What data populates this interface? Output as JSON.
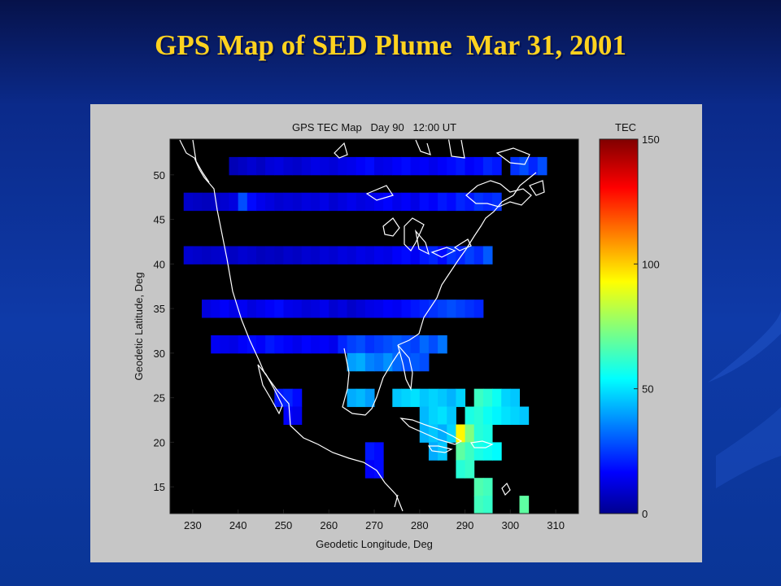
{
  "slide": {
    "title": "GPS Map of SED Plume  Mar 31, 2001",
    "title_color": "#ffd21f",
    "background_color": "#0e3aa8"
  },
  "chart_data": {
    "type": "heatmap",
    "title": "GPS TEC Map   Day 90   12:00 UT",
    "xlabel": "Geodetic Longitude, Deg",
    "ylabel": "Geodetic Latitude, Deg",
    "xlim": [
      225,
      315
    ],
    "ylim": [
      12,
      54
    ],
    "xticks": [
      230,
      240,
      250,
      260,
      270,
      280,
      290,
      300,
      310
    ],
    "yticks": [
      15,
      20,
      25,
      30,
      35,
      40,
      45,
      50
    ],
    "no_data_color": "#000000",
    "coastlines": "white outline of North America",
    "colorbar": {
      "label": "TEC",
      "min": 0,
      "max": 150,
      "ticks": [
        0,
        50,
        100,
        150
      ],
      "colormap": "jet",
      "placement": "right"
    },
    "cell_size_deg": 2,
    "cells": [
      {
        "lon": 239,
        "lat": 51,
        "tec": 8
      },
      {
        "lon": 241,
        "lat": 51,
        "tec": 10
      },
      {
        "lon": 243,
        "lat": 51,
        "tec": 12
      },
      {
        "lon": 245,
        "lat": 51,
        "tec": 10
      },
      {
        "lon": 247,
        "lat": 51,
        "tec": 13
      },
      {
        "lon": 249,
        "lat": 51,
        "tec": 14
      },
      {
        "lon": 251,
        "lat": 51,
        "tec": 12
      },
      {
        "lon": 253,
        "lat": 51,
        "tec": 11
      },
      {
        "lon": 255,
        "lat": 51,
        "tec": 13
      },
      {
        "lon": 257,
        "lat": 51,
        "tec": 15
      },
      {
        "lon": 259,
        "lat": 51,
        "tec": 14
      },
      {
        "lon": 261,
        "lat": 51,
        "tec": 13
      },
      {
        "lon": 263,
        "lat": 51,
        "tec": 15
      },
      {
        "lon": 265,
        "lat": 51,
        "tec": 16
      },
      {
        "lon": 267,
        "lat": 51,
        "tec": 18
      },
      {
        "lon": 269,
        "lat": 51,
        "tec": 20
      },
      {
        "lon": 271,
        "lat": 51,
        "tec": 15
      },
      {
        "lon": 273,
        "lat": 51,
        "tec": 16
      },
      {
        "lon": 275,
        "lat": 51,
        "tec": 18
      },
      {
        "lon": 277,
        "lat": 51,
        "tec": 20
      },
      {
        "lon": 279,
        "lat": 51,
        "tec": 17
      },
      {
        "lon": 281,
        "lat": 51,
        "tec": 18
      },
      {
        "lon": 283,
        "lat": 51,
        "tec": 16
      },
      {
        "lon": 285,
        "lat": 51,
        "tec": 18
      },
      {
        "lon": 287,
        "lat": 51,
        "tec": 20
      },
      {
        "lon": 289,
        "lat": 51,
        "tec": 22
      },
      {
        "lon": 291,
        "lat": 51,
        "tec": 18
      },
      {
        "lon": 293,
        "lat": 51,
        "tec": 20
      },
      {
        "lon": 295,
        "lat": 51,
        "tec": 24
      },
      {
        "lon": 297,
        "lat": 51,
        "tec": 22
      },
      {
        "lon": 301,
        "lat": 51,
        "tec": 26
      },
      {
        "lon": 303,
        "lat": 51,
        "tec": 30
      },
      {
        "lon": 305,
        "lat": 51,
        "tec": 24
      },
      {
        "lon": 307,
        "lat": 51,
        "tec": 30
      },
      {
        "lon": 229,
        "lat": 47,
        "tec": 11
      },
      {
        "lon": 231,
        "lat": 47,
        "tec": 10
      },
      {
        "lon": 233,
        "lat": 47,
        "tec": 9
      },
      {
        "lon": 235,
        "lat": 47,
        "tec": 10
      },
      {
        "lon": 237,
        "lat": 47,
        "tec": 12
      },
      {
        "lon": 239,
        "lat": 47,
        "tec": 14
      },
      {
        "lon": 241,
        "lat": 47,
        "tec": 30
      },
      {
        "lon": 243,
        "lat": 47,
        "tec": 20
      },
      {
        "lon": 245,
        "lat": 47,
        "tec": 16
      },
      {
        "lon": 247,
        "lat": 47,
        "tec": 14
      },
      {
        "lon": 249,
        "lat": 47,
        "tec": 12
      },
      {
        "lon": 251,
        "lat": 47,
        "tec": 13
      },
      {
        "lon": 253,
        "lat": 47,
        "tec": 12
      },
      {
        "lon": 255,
        "lat": 47,
        "tec": 14
      },
      {
        "lon": 257,
        "lat": 47,
        "tec": 13
      },
      {
        "lon": 259,
        "lat": 47,
        "tec": 15
      },
      {
        "lon": 261,
        "lat": 47,
        "tec": 12
      },
      {
        "lon": 263,
        "lat": 47,
        "tec": 14
      },
      {
        "lon": 265,
        "lat": 47,
        "tec": 16
      },
      {
        "lon": 267,
        "lat": 47,
        "tec": 14
      },
      {
        "lon": 269,
        "lat": 47,
        "tec": 15
      },
      {
        "lon": 271,
        "lat": 47,
        "tec": 17
      },
      {
        "lon": 273,
        "lat": 47,
        "tec": 19
      },
      {
        "lon": 275,
        "lat": 47,
        "tec": 16
      },
      {
        "lon": 277,
        "lat": 47,
        "tec": 18
      },
      {
        "lon": 279,
        "lat": 47,
        "tec": 15
      },
      {
        "lon": 281,
        "lat": 47,
        "tec": 20
      },
      {
        "lon": 283,
        "lat": 47,
        "tec": 18
      },
      {
        "lon": 285,
        "lat": 47,
        "tec": 22
      },
      {
        "lon": 287,
        "lat": 47,
        "tec": 20
      },
      {
        "lon": 289,
        "lat": 47,
        "tec": 24
      },
      {
        "lon": 291,
        "lat": 47,
        "tec": 22
      },
      {
        "lon": 293,
        "lat": 47,
        "tec": 26
      },
      {
        "lon": 295,
        "lat": 47,
        "tec": 24
      },
      {
        "lon": 297,
        "lat": 47,
        "tec": 26
      },
      {
        "lon": 229,
        "lat": 41,
        "tec": 12
      },
      {
        "lon": 231,
        "lat": 41,
        "tec": 11
      },
      {
        "lon": 233,
        "lat": 41,
        "tec": 10
      },
      {
        "lon": 235,
        "lat": 41,
        "tec": 11
      },
      {
        "lon": 237,
        "lat": 41,
        "tec": 12
      },
      {
        "lon": 239,
        "lat": 41,
        "tec": 10
      },
      {
        "lon": 241,
        "lat": 41,
        "tec": 12
      },
      {
        "lon": 243,
        "lat": 41,
        "tec": 11
      },
      {
        "lon": 245,
        "lat": 41,
        "tec": 9
      },
      {
        "lon": 247,
        "lat": 41,
        "tec": 10
      },
      {
        "lon": 249,
        "lat": 41,
        "tec": 9
      },
      {
        "lon": 251,
        "lat": 41,
        "tec": 11
      },
      {
        "lon": 253,
        "lat": 41,
        "tec": 10
      },
      {
        "lon": 255,
        "lat": 41,
        "tec": 12
      },
      {
        "lon": 257,
        "lat": 41,
        "tec": 11
      },
      {
        "lon": 259,
        "lat": 41,
        "tec": 13
      },
      {
        "lon": 261,
        "lat": 41,
        "tec": 12
      },
      {
        "lon": 263,
        "lat": 41,
        "tec": 14
      },
      {
        "lon": 265,
        "lat": 41,
        "tec": 13
      },
      {
        "lon": 267,
        "lat": 41,
        "tec": 15
      },
      {
        "lon": 269,
        "lat": 41,
        "tec": 14
      },
      {
        "lon": 271,
        "lat": 41,
        "tec": 16
      },
      {
        "lon": 273,
        "lat": 41,
        "tec": 15
      },
      {
        "lon": 275,
        "lat": 41,
        "tec": 18
      },
      {
        "lon": 277,
        "lat": 41,
        "tec": 20
      },
      {
        "lon": 279,
        "lat": 41,
        "tec": 17
      },
      {
        "lon": 281,
        "lat": 41,
        "tec": 22
      },
      {
        "lon": 283,
        "lat": 41,
        "tec": 24
      },
      {
        "lon": 285,
        "lat": 41,
        "tec": 20
      },
      {
        "lon": 287,
        "lat": 41,
        "tec": 26
      },
      {
        "lon": 289,
        "lat": 41,
        "tec": 24
      },
      {
        "lon": 291,
        "lat": 41,
        "tec": 28
      },
      {
        "lon": 293,
        "lat": 41,
        "tec": 25
      },
      {
        "lon": 295,
        "lat": 41,
        "tec": 32
      },
      {
        "lon": 233,
        "lat": 35,
        "tec": 14
      },
      {
        "lon": 235,
        "lat": 35,
        "tec": 16
      },
      {
        "lon": 237,
        "lat": 35,
        "tec": 18
      },
      {
        "lon": 239,
        "lat": 35,
        "tec": 15
      },
      {
        "lon": 241,
        "lat": 35,
        "tec": 17
      },
      {
        "lon": 243,
        "lat": 35,
        "tec": 14
      },
      {
        "lon": 245,
        "lat": 35,
        "tec": 16
      },
      {
        "lon": 247,
        "lat": 35,
        "tec": 18
      },
      {
        "lon": 249,
        "lat": 35,
        "tec": 20
      },
      {
        "lon": 251,
        "lat": 35,
        "tec": 16
      },
      {
        "lon": 253,
        "lat": 35,
        "tec": 15
      },
      {
        "lon": 255,
        "lat": 35,
        "tec": 13
      },
      {
        "lon": 257,
        "lat": 35,
        "tec": 14
      },
      {
        "lon": 259,
        "lat": 35,
        "tec": 16
      },
      {
        "lon": 261,
        "lat": 35,
        "tec": 12
      },
      {
        "lon": 263,
        "lat": 35,
        "tec": 14
      },
      {
        "lon": 265,
        "lat": 35,
        "tec": 11
      },
      {
        "lon": 267,
        "lat": 35,
        "tec": 13
      },
      {
        "lon": 269,
        "lat": 35,
        "tec": 15
      },
      {
        "lon": 271,
        "lat": 35,
        "tec": 16
      },
      {
        "lon": 273,
        "lat": 35,
        "tec": 18
      },
      {
        "lon": 275,
        "lat": 35,
        "tec": 17
      },
      {
        "lon": 277,
        "lat": 35,
        "tec": 20
      },
      {
        "lon": 279,
        "lat": 35,
        "tec": 22
      },
      {
        "lon": 281,
        "lat": 35,
        "tec": 24
      },
      {
        "lon": 283,
        "lat": 35,
        "tec": 26
      },
      {
        "lon": 285,
        "lat": 35,
        "tec": 28
      },
      {
        "lon": 287,
        "lat": 35,
        "tec": 30
      },
      {
        "lon": 289,
        "lat": 35,
        "tec": 28
      },
      {
        "lon": 291,
        "lat": 35,
        "tec": 26
      },
      {
        "lon": 293,
        "lat": 35,
        "tec": 24
      },
      {
        "lon": 235,
        "lat": 31,
        "tec": 17
      },
      {
        "lon": 237,
        "lat": 31,
        "tec": 16
      },
      {
        "lon": 239,
        "lat": 31,
        "tec": 15
      },
      {
        "lon": 241,
        "lat": 31,
        "tec": 18
      },
      {
        "lon": 243,
        "lat": 31,
        "tec": 20
      },
      {
        "lon": 245,
        "lat": 31,
        "tec": 18
      },
      {
        "lon": 247,
        "lat": 31,
        "tec": 22
      },
      {
        "lon": 249,
        "lat": 31,
        "tec": 20
      },
      {
        "lon": 251,
        "lat": 31,
        "tec": 18
      },
      {
        "lon": 253,
        "lat": 31,
        "tec": 16
      },
      {
        "lon": 255,
        "lat": 31,
        "tec": 19
      },
      {
        "lon": 257,
        "lat": 31,
        "tec": 17
      },
      {
        "lon": 259,
        "lat": 31,
        "tec": 18
      },
      {
        "lon": 261,
        "lat": 31,
        "tec": 16
      },
      {
        "lon": 263,
        "lat": 31,
        "tec": 24
      },
      {
        "lon": 265,
        "lat": 31,
        "tec": 28
      },
      {
        "lon": 267,
        "lat": 31,
        "tec": 30
      },
      {
        "lon": 269,
        "lat": 31,
        "tec": 26
      },
      {
        "lon": 271,
        "lat": 31,
        "tec": 28
      },
      {
        "lon": 273,
        "lat": 31,
        "tec": 30
      },
      {
        "lon": 275,
        "lat": 31,
        "tec": 32
      },
      {
        "lon": 277,
        "lat": 31,
        "tec": 30
      },
      {
        "lon": 279,
        "lat": 31,
        "tec": 28
      },
      {
        "lon": 281,
        "lat": 31,
        "tec": 34
      },
      {
        "lon": 283,
        "lat": 31,
        "tec": 30
      },
      {
        "lon": 285,
        "lat": 31,
        "tec": 36
      },
      {
        "lon": 265,
        "lat": 29,
        "tec": 42
      },
      {
        "lon": 267,
        "lat": 29,
        "tec": 44
      },
      {
        "lon": 269,
        "lat": 29,
        "tec": 38
      },
      {
        "lon": 271,
        "lat": 29,
        "tec": 36
      },
      {
        "lon": 273,
        "lat": 29,
        "tec": 40
      },
      {
        "lon": 275,
        "lat": 29,
        "tec": 34
      },
      {
        "lon": 277,
        "lat": 29,
        "tec": 30
      },
      {
        "lon": 279,
        "lat": 29,
        "tec": 32
      },
      {
        "lon": 281,
        "lat": 29,
        "tec": 30
      },
      {
        "lon": 265,
        "lat": 25,
        "tec": 44
      },
      {
        "lon": 267,
        "lat": 25,
        "tec": 46
      },
      {
        "lon": 269,
        "lat": 25,
        "tec": 42
      },
      {
        "lon": 275,
        "lat": 25,
        "tec": 48
      },
      {
        "lon": 277,
        "lat": 25,
        "tec": 50
      },
      {
        "lon": 279,
        "lat": 25,
        "tec": 52
      },
      {
        "lon": 281,
        "lat": 25,
        "tec": 48
      },
      {
        "lon": 283,
        "lat": 25,
        "tec": 50
      },
      {
        "lon": 285,
        "lat": 25,
        "tec": 48
      },
      {
        "lon": 287,
        "lat": 25,
        "tec": 45
      },
      {
        "lon": 289,
        "lat": 25,
        "tec": 50
      },
      {
        "lon": 293,
        "lat": 25,
        "tec": 65
      },
      {
        "lon": 295,
        "lat": 25,
        "tec": 62
      },
      {
        "lon": 297,
        "lat": 25,
        "tec": 58
      },
      {
        "lon": 299,
        "lat": 25,
        "tec": 50
      },
      {
        "lon": 301,
        "lat": 25,
        "tec": 48
      },
      {
        "lon": 249,
        "lat": 25,
        "tec": 22
      },
      {
        "lon": 251,
        "lat": 25,
        "tec": 24
      },
      {
        "lon": 253,
        "lat": 25,
        "tec": 20
      },
      {
        "lon": 251,
        "lat": 23,
        "tec": 18
      },
      {
        "lon": 253,
        "lat": 23,
        "tec": 16
      },
      {
        "lon": 281,
        "lat": 23,
        "tec": 46
      },
      {
        "lon": 283,
        "lat": 23,
        "tec": 50
      },
      {
        "lon": 285,
        "lat": 23,
        "tec": 52
      },
      {
        "lon": 287,
        "lat": 23,
        "tec": 48
      },
      {
        "lon": 291,
        "lat": 23,
        "tec": 60
      },
      {
        "lon": 293,
        "lat": 23,
        "tec": 62
      },
      {
        "lon": 295,
        "lat": 23,
        "tec": 58
      },
      {
        "lon": 297,
        "lat": 23,
        "tec": 55
      },
      {
        "lon": 299,
        "lat": 23,
        "tec": 52
      },
      {
        "lon": 301,
        "lat": 23,
        "tec": 50
      },
      {
        "lon": 303,
        "lat": 23,
        "tec": 48
      },
      {
        "lon": 281,
        "lat": 21,
        "tec": 45
      },
      {
        "lon": 283,
        "lat": 21,
        "tec": 48
      },
      {
        "lon": 285,
        "lat": 21,
        "tec": 44
      },
      {
        "lon": 287,
        "lat": 21,
        "tec": 50
      },
      {
        "lon": 289,
        "lat": 21,
        "tec": 95
      },
      {
        "lon": 291,
        "lat": 21,
        "tec": 75
      },
      {
        "lon": 293,
        "lat": 21,
        "tec": 62
      },
      {
        "lon": 295,
        "lat": 21,
        "tec": 60
      },
      {
        "lon": 283,
        "lat": 19,
        "tec": 44
      },
      {
        "lon": 285,
        "lat": 19,
        "tec": 48
      },
      {
        "lon": 289,
        "lat": 19,
        "tec": 70
      },
      {
        "lon": 291,
        "lat": 19,
        "tec": 65
      },
      {
        "lon": 293,
        "lat": 19,
        "tec": 60
      },
      {
        "lon": 295,
        "lat": 19,
        "tec": 58
      },
      {
        "lon": 297,
        "lat": 19,
        "tec": 56
      },
      {
        "lon": 269,
        "lat": 19,
        "tec": 22
      },
      {
        "lon": 271,
        "lat": 19,
        "tec": 20
      },
      {
        "lon": 269,
        "lat": 17,
        "tec": 18
      },
      {
        "lon": 271,
        "lat": 17,
        "tec": 20
      },
      {
        "lon": 289,
        "lat": 17,
        "tec": 62
      },
      {
        "lon": 291,
        "lat": 17,
        "tec": 64
      },
      {
        "lon": 293,
        "lat": 15,
        "tec": 68
      },
      {
        "lon": 295,
        "lat": 15,
        "tec": 66
      },
      {
        "lon": 293,
        "lat": 13,
        "tec": 66
      },
      {
        "lon": 295,
        "lat": 13,
        "tec": 64
      },
      {
        "lon": 303,
        "lat": 13,
        "tec": 70
      }
    ]
  }
}
